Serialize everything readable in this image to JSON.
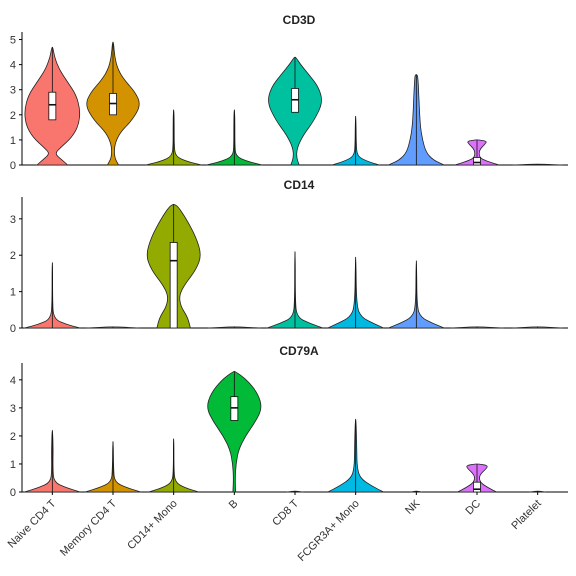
{
  "chart_data": [
    {
      "type": "violin",
      "title": "CD3D",
      "ylim": [
        0,
        5.3
      ],
      "yticks": [
        0,
        1,
        2,
        3,
        4,
        5
      ],
      "categories": [
        "Naive CD4 T",
        "Memory CD4 T",
        "CD14+ Mono",
        "B",
        "CD8 T",
        "FCGR3A+ Mono",
        "NK",
        "DC",
        "Platelet"
      ],
      "colors": [
        "#F8766D",
        "#D39200",
        "#93AA00",
        "#00BA38",
        "#00C19F",
        "#00B9E3",
        "#619CFF",
        "#DB72FB",
        "#FF61C3"
      ],
      "violins": [
        {
          "max": 4.7,
          "box": [
            1.8,
            2.4,
            2.9
          ],
          "profile": [
            [
              0,
              0.55
            ],
            [
              0.2,
              0.35
            ],
            [
              0.45,
              0.08
            ],
            [
              0.7,
              0.3
            ],
            [
              1.1,
              0.7
            ],
            [
              1.6,
              0.95
            ],
            [
              2.2,
              1.0
            ],
            [
              2.8,
              0.85
            ],
            [
              3.3,
              0.55
            ],
            [
              3.8,
              0.25
            ],
            [
              4.3,
              0.08
            ],
            [
              4.7,
              0.02
            ]
          ]
        },
        {
          "max": 4.9,
          "box": [
            2.0,
            2.45,
            2.85
          ],
          "profile": [
            [
              0,
              0.2
            ],
            [
              0.3,
              0.05
            ],
            [
              0.8,
              0.05
            ],
            [
              1.3,
              0.25
            ],
            [
              1.8,
              0.7
            ],
            [
              2.4,
              1.0
            ],
            [
              2.9,
              0.8
            ],
            [
              3.4,
              0.4
            ],
            [
              3.8,
              0.18
            ],
            [
              4.3,
              0.06
            ],
            [
              4.9,
              0.02
            ]
          ]
        },
        {
          "max": 2.2,
          "box": [
            0,
            0,
            0
          ],
          "profile": [
            [
              0,
              1.0
            ],
            [
              0.15,
              0.45
            ],
            [
              0.35,
              0.06
            ],
            [
              0.8,
              0.02
            ],
            [
              1.5,
              0.02
            ],
            [
              2.2,
              0.01
            ]
          ]
        },
        {
          "max": 2.2,
          "box": [
            0,
            0,
            0
          ],
          "profile": [
            [
              0,
              1.0
            ],
            [
              0.15,
              0.45
            ],
            [
              0.35,
              0.05
            ],
            [
              0.8,
              0.02
            ],
            [
              1.5,
              0.02
            ],
            [
              2.2,
              0.01
            ]
          ]
        },
        {
          "max": 4.3,
          "box": [
            2.1,
            2.6,
            3.05
          ],
          "profile": [
            [
              0,
              0.15
            ],
            [
              0.3,
              0.05
            ],
            [
              0.7,
              0.08
            ],
            [
              1.2,
              0.3
            ],
            [
              1.8,
              0.7
            ],
            [
              2.5,
              1.0
            ],
            [
              3.1,
              0.85
            ],
            [
              3.6,
              0.5
            ],
            [
              4.0,
              0.2
            ],
            [
              4.3,
              0.03
            ]
          ]
        },
        {
          "max": 1.95,
          "box": [
            0,
            0,
            0
          ],
          "profile": [
            [
              0,
              0.85
            ],
            [
              0.15,
              0.4
            ],
            [
              0.35,
              0.06
            ],
            [
              0.8,
              0.02
            ],
            [
              1.95,
              0.01
            ]
          ]
        },
        {
          "max": 3.6,
          "box": [
            0,
            0,
            0
          ],
          "profile": [
            [
              0,
              1.0
            ],
            [
              0.2,
              0.6
            ],
            [
              0.5,
              0.35
            ],
            [
              1.0,
              0.22
            ],
            [
              1.5,
              0.15
            ],
            [
              2.0,
              0.12
            ],
            [
              2.5,
              0.1
            ],
            [
              3.0,
              0.08
            ],
            [
              3.4,
              0.06
            ],
            [
              3.6,
              0.04
            ]
          ]
        },
        {
          "max": 1.0,
          "box": [
            0,
            0.1,
            0.3
          ],
          "profile": [
            [
              0,
              0.8
            ],
            [
              0.15,
              0.35
            ],
            [
              0.3,
              0.08
            ],
            [
              0.6,
              0.08
            ],
            [
              0.85,
              0.3
            ],
            [
              0.95,
              0.35
            ],
            [
              1.0,
              0.05
            ]
          ]
        },
        {
          "max": 0.03,
          "box": [
            0,
            0,
            0
          ],
          "profile": [
            [
              0,
              0.9
            ],
            [
              0.03,
              0.2
            ]
          ]
        }
      ]
    },
    {
      "type": "violin",
      "title": "CD14",
      "ylim": [
        0,
        3.6
      ],
      "yticks": [
        0,
        1,
        2,
        3
      ],
      "categories": [
        "Naive CD4 T",
        "Memory CD4 T",
        "CD14+ Mono",
        "B",
        "CD8 T",
        "FCGR3A+ Mono",
        "NK",
        "DC",
        "Platelet"
      ],
      "colors": [
        "#F8766D",
        "#D39200",
        "#93AA00",
        "#00BA38",
        "#00C19F",
        "#00B9E3",
        "#619CFF",
        "#DB72FB",
        "#FF61C3"
      ],
      "violins": [
        {
          "max": 1.8,
          "box": [
            0,
            0,
            0
          ],
          "profile": [
            [
              0,
              1.0
            ],
            [
              0.1,
              0.5
            ],
            [
              0.25,
              0.04
            ],
            [
              0.8,
              0.01
            ],
            [
              1.8,
              0.01
            ]
          ]
        },
        {
          "max": 0.03,
          "box": [
            0,
            0,
            0
          ],
          "profile": [
            [
              0,
              0.95
            ],
            [
              0.03,
              0.2
            ]
          ]
        },
        {
          "max": 3.4,
          "box": [
            0,
            1.85,
            2.35
          ],
          "profile": [
            [
              0,
              0.6
            ],
            [
              0.3,
              0.5
            ],
            [
              0.6,
              0.25
            ],
            [
              0.9,
              0.2
            ],
            [
              1.2,
              0.4
            ],
            [
              1.6,
              0.8
            ],
            [
              2.0,
              1.0
            ],
            [
              2.5,
              0.8
            ],
            [
              3.0,
              0.45
            ],
            [
              3.35,
              0.15
            ],
            [
              3.4,
              0.0
            ]
          ]
        },
        {
          "max": 0.03,
          "box": [
            0,
            0,
            0
          ],
          "profile": [
            [
              0,
              0.95
            ],
            [
              0.03,
              0.2
            ]
          ]
        },
        {
          "max": 2.1,
          "box": [
            0,
            0,
            0
          ],
          "profile": [
            [
              0,
              1.0
            ],
            [
              0.12,
              0.55
            ],
            [
              0.3,
              0.06
            ],
            [
              0.8,
              0.01
            ],
            [
              2.1,
              0.01
            ]
          ]
        },
        {
          "max": 1.95,
          "box": [
            0,
            0,
            0
          ],
          "profile": [
            [
              0,
              1.0
            ],
            [
              0.12,
              0.65
            ],
            [
              0.3,
              0.2
            ],
            [
              0.6,
              0.03
            ],
            [
              1.95,
              0.01
            ]
          ]
        },
        {
          "max": 1.85,
          "box": [
            0,
            0,
            0
          ],
          "profile": [
            [
              0,
              1.0
            ],
            [
              0.12,
              0.6
            ],
            [
              0.3,
              0.15
            ],
            [
              0.6,
              0.02
            ],
            [
              1.85,
              0.01
            ]
          ]
        },
        {
          "max": 0.03,
          "box": [
            0,
            0,
            0
          ],
          "profile": [
            [
              0,
              0.95
            ],
            [
              0.03,
              0.2
            ]
          ]
        },
        {
          "max": 0.03,
          "box": [
            0,
            0,
            0
          ],
          "profile": [
            [
              0,
              0.9
            ],
            [
              0.03,
              0.2
            ]
          ]
        }
      ]
    },
    {
      "type": "violin",
      "title": "CD79A",
      "ylim": [
        0,
        4.6
      ],
      "yticks": [
        0,
        1,
        2,
        3,
        4
      ],
      "categories": [
        "Naive CD4 T",
        "Memory CD4 T",
        "CD14+ Mono",
        "B",
        "CD8 T",
        "FCGR3A+ Mono",
        "NK",
        "DC",
        "Platelet"
      ],
      "colors": [
        "#F8766D",
        "#D39200",
        "#93AA00",
        "#00BA38",
        "#00C19F",
        "#00B9E3",
        "#619CFF",
        "#DB72FB",
        "#FF61C3"
      ],
      "violins": [
        {
          "max": 2.2,
          "box": [
            0,
            0,
            0
          ],
          "profile": [
            [
              0,
              1.0
            ],
            [
              0.15,
              0.5
            ],
            [
              0.35,
              0.06
            ],
            [
              0.8,
              0.02
            ],
            [
              1.5,
              0.03
            ],
            [
              2.2,
              0.01
            ]
          ]
        },
        {
          "max": 1.8,
          "box": [
            0,
            0,
            0
          ],
          "profile": [
            [
              0,
              1.0
            ],
            [
              0.15,
              0.5
            ],
            [
              0.35,
              0.06
            ],
            [
              0.8,
              0.02
            ],
            [
              1.8,
              0.01
            ]
          ]
        },
        {
          "max": 1.9,
          "box": [
            0,
            0,
            0
          ],
          "profile": [
            [
              0,
              0.9
            ],
            [
              0.15,
              0.4
            ],
            [
              0.35,
              0.05
            ],
            [
              0.8,
              0.01
            ],
            [
              1.9,
              0.01
            ]
          ]
        },
        {
          "max": 4.3,
          "box": [
            2.55,
            3.0,
            3.4
          ],
          "profile": [
            [
              0,
              0.05
            ],
            [
              0.5,
              0.03
            ],
            [
              1.0,
              0.06
            ],
            [
              1.5,
              0.15
            ],
            [
              2.0,
              0.4
            ],
            [
              2.5,
              0.75
            ],
            [
              3.0,
              1.0
            ],
            [
              3.5,
              0.85
            ],
            [
              4.0,
              0.45
            ],
            [
              4.3,
              0.03
            ]
          ]
        },
        {
          "max": 0.03,
          "box": [
            0,
            0,
            0
          ],
          "profile": [
            [
              0,
              0.3
            ],
            [
              0.03,
              0.05
            ]
          ]
        },
        {
          "max": 2.6,
          "box": [
            0,
            0,
            0
          ],
          "profile": [
            [
              0,
              1.0
            ],
            [
              0.2,
              0.6
            ],
            [
              0.5,
              0.15
            ],
            [
              0.9,
              0.05
            ],
            [
              1.5,
              0.04
            ],
            [
              2.0,
              0.03
            ],
            [
              2.6,
              0.01
            ]
          ]
        },
        {
          "max": 0.03,
          "box": [
            0,
            0,
            0
          ],
          "profile": [
            [
              0,
              0.2
            ],
            [
              0.03,
              0.05
            ]
          ]
        },
        {
          "max": 1.0,
          "box": [
            0,
            0.1,
            0.35
          ],
          "profile": [
            [
              0,
              0.7
            ],
            [
              0.15,
              0.4
            ],
            [
              0.35,
              0.1
            ],
            [
              0.6,
              0.08
            ],
            [
              0.85,
              0.35
            ],
            [
              0.95,
              0.38
            ],
            [
              1.0,
              0.05
            ]
          ]
        },
        {
          "max": 0.03,
          "box": [
            0,
            0,
            0
          ],
          "profile": [
            [
              0,
              0.3
            ],
            [
              0.03,
              0.05
            ]
          ]
        }
      ]
    }
  ],
  "xaxis": {
    "labels": [
      "Naive CD4 T",
      "Memory CD4 T",
      "CD14+ Mono",
      "B",
      "CD8 T",
      "FCGR3A+ Mono",
      "NK",
      "DC",
      "Platelet"
    ]
  }
}
